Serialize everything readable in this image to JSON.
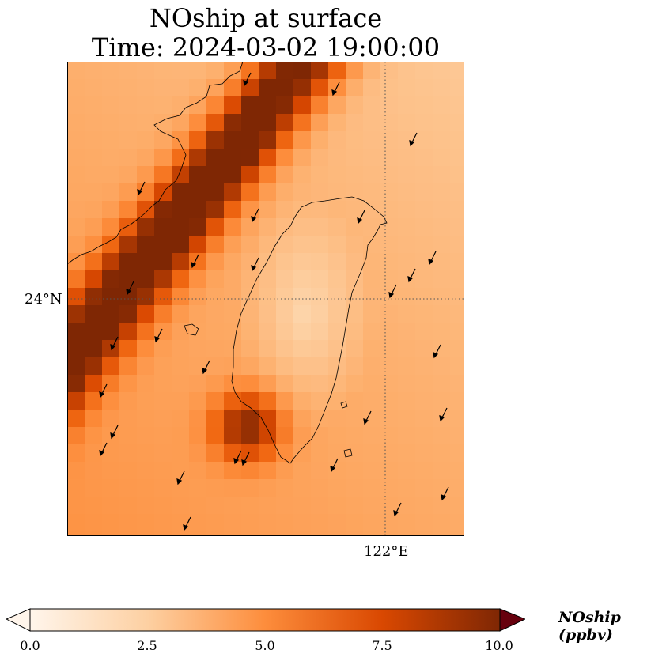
{
  "title": {
    "line1": "NOship at surface",
    "line2": "Time: 2024-03-02 19:00:00"
  },
  "map": {
    "lat_tick_label": "24°N",
    "lon_tick_label": "122°E",
    "lat_range": [
      22.0,
      26.0
    ],
    "lon_range": [
      119.0,
      122.7
    ],
    "gridlines": "dotted"
  },
  "colorbar": {
    "label": "NOship (ppbv)",
    "ticks": [
      "0.0",
      "2.5",
      "5.0",
      "7.5",
      "10.0"
    ],
    "range": [
      0,
      10
    ],
    "extend": "both",
    "colormap": [
      "#fff5eb",
      "#fee6ce",
      "#fdd0a2",
      "#fdae6b",
      "#fd8d3c",
      "#f16913",
      "#d94801",
      "#a63603",
      "#7f2704"
    ]
  },
  "colors": {
    "coastline": "#000000",
    "wind_arrow": "#000000"
  }
}
